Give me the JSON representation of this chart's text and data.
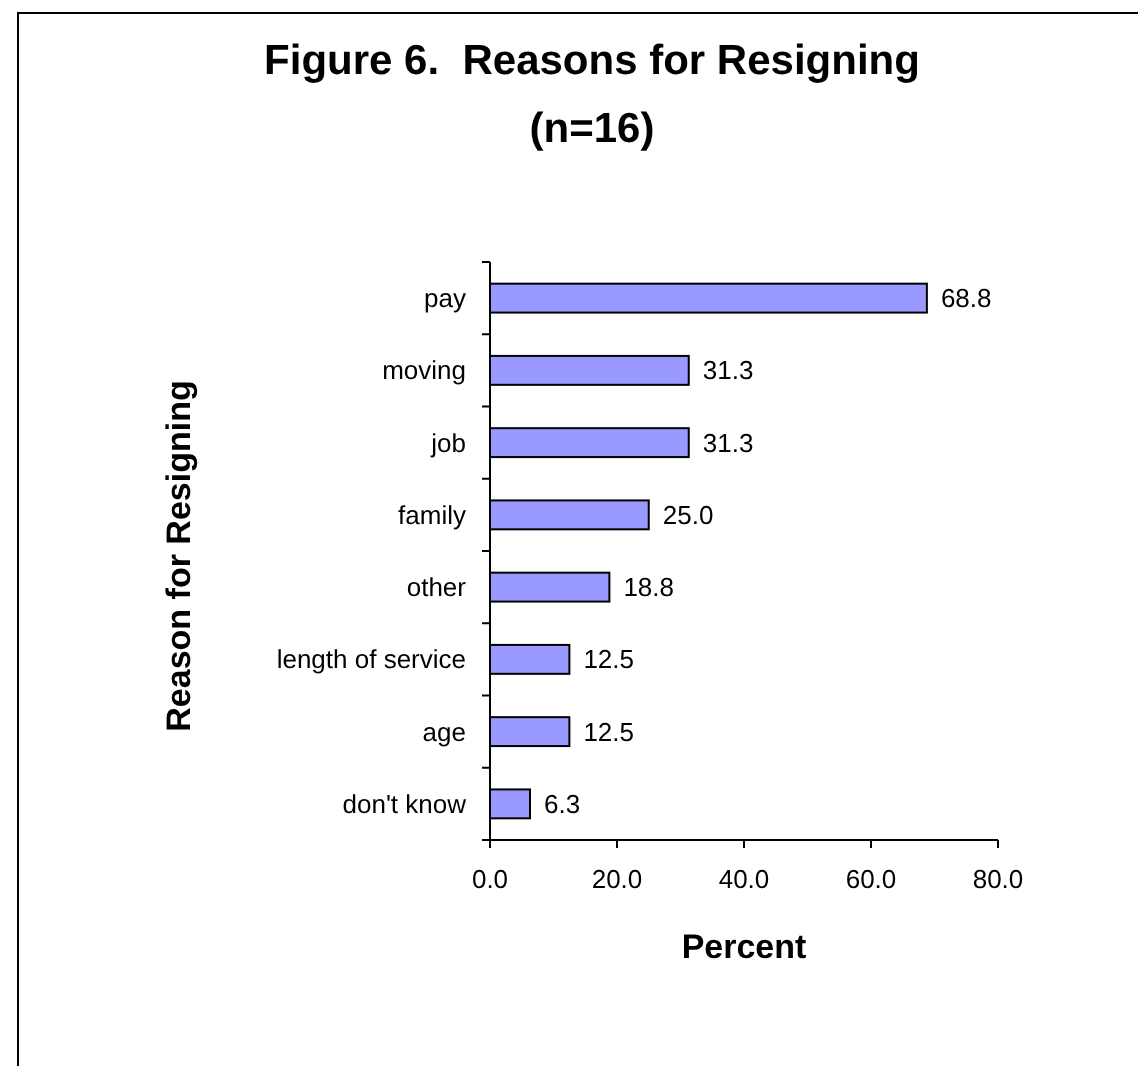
{
  "chart_data": {
    "type": "bar",
    "orientation": "horizontal",
    "title": "Figure 6.  Reasons for Resigning\n(n=16)",
    "xlabel": "Percent",
    "ylabel": "Reason for Resigning",
    "categories": [
      "pay",
      "moving",
      "job",
      "family",
      "other",
      "length of service",
      "age",
      "don't know"
    ],
    "values": [
      68.8,
      31.3,
      31.3,
      25.0,
      18.8,
      12.5,
      12.5,
      6.3
    ],
    "color": "#9999ff",
    "xlim": [
      0,
      80
    ],
    "xticks": [
      {
        "value": 0,
        "label": "0.0"
      },
      {
        "value": 20,
        "label": "20.0"
      },
      {
        "value": 40,
        "label": "40.0"
      },
      {
        "value": 60,
        "label": "60.0"
      },
      {
        "value": 80,
        "label": "80.0"
      }
    ],
    "value_labels": [
      "68.8",
      "31.3",
      "31.3",
      "25.0",
      "18.8",
      "12.5",
      "12.5",
      "6.3"
    ]
  }
}
